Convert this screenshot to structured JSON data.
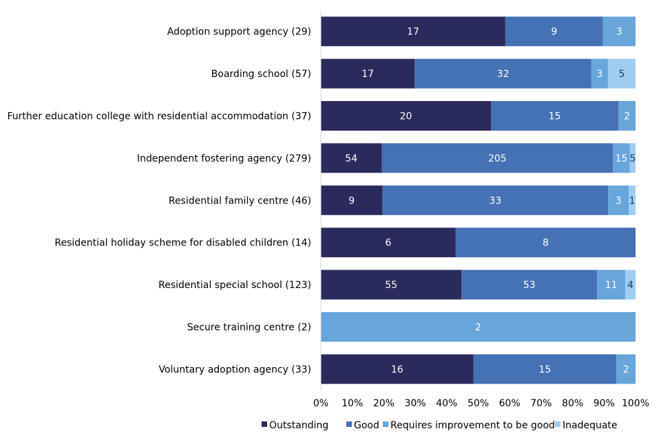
{
  "chart_data": {
    "type": "bar",
    "orientation": "horizontal",
    "stacked": "percent",
    "title": "",
    "xlabel": "",
    "ylabel": "",
    "xlim": [
      0,
      100
    ],
    "x_ticks": [
      "0%",
      "10%",
      "20%",
      "30%",
      "40%",
      "50%",
      "60%",
      "70%",
      "80%",
      "90%",
      "100%"
    ],
    "grid": false,
    "legend_position": "bottom",
    "categories": [
      "Adoption support agency (29)",
      "Boarding school (57)",
      "Further education college with residential accommodation (37)",
      "Independent fostering agency (279)",
      "Residential family centre (46)",
      "Residential holiday scheme for disabled children (14)",
      "Residential special school (123)",
      "Secure training centre (2)",
      "Voluntary adoption agency (33)"
    ],
    "series": [
      {
        "name": "Outstanding",
        "color": "#2b2a5c",
        "label_color": "#ffffff",
        "values": [
          17,
          17,
          20,
          54,
          9,
          6,
          55,
          0,
          16
        ]
      },
      {
        "name": "Good",
        "color": "#4571b5",
        "label_color": "#ffffff",
        "values": [
          9,
          32,
          15,
          205,
          33,
          8,
          53,
          0,
          15
        ]
      },
      {
        "name": "Requires improvement to be good",
        "color": "#67a5db",
        "label_color": "#ffffff",
        "values": [
          3,
          3,
          2,
          15,
          3,
          0,
          11,
          2,
          2
        ]
      },
      {
        "name": "Inadequate",
        "color": "#9fcdf2",
        "label_color": "#1f3a5f",
        "values": [
          0,
          5,
          0,
          5,
          1,
          0,
          4,
          0,
          0
        ]
      }
    ]
  }
}
